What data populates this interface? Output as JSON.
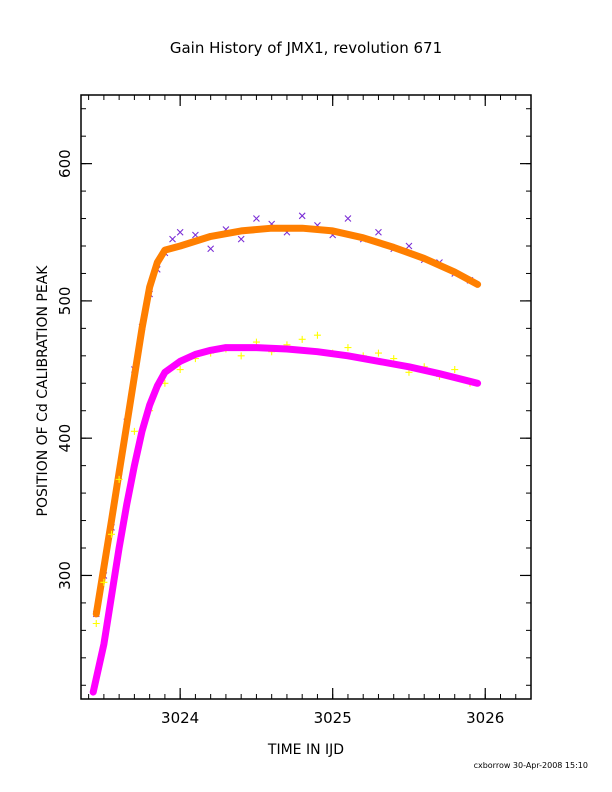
{
  "chart_data": {
    "type": "scatter",
    "title": "Gain History of JMX1, revolution 671",
    "xlabel": "TIME IN IJD",
    "ylabel": "POSITION OF Cd CALIBRATION PEAK",
    "xlim": [
      3023.35,
      3026.3
    ],
    "ylim": [
      210,
      650
    ],
    "x_ticks": [
      {
        "value": 3024,
        "label": "3024"
      },
      {
        "value": 3025,
        "label": "3025"
      },
      {
        "value": 3026,
        "label": "3026"
      }
    ],
    "y_ticks": [
      {
        "value": 300,
        "label": "300"
      },
      {
        "value": 400,
        "label": "400"
      },
      {
        "value": 500,
        "label": "500"
      },
      {
        "value": 600,
        "label": "600"
      }
    ],
    "grid": false,
    "legend": "none",
    "footer": "cxborrow 30-Apr-2008 15:10",
    "series": [
      {
        "role": "upper-data",
        "marker": "x",
        "color": "#7b2fd6",
        "points": [
          [
            3023.45,
            272
          ],
          [
            3023.5,
            300
          ],
          [
            3023.55,
            335
          ],
          [
            3023.6,
            372
          ],
          [
            3023.65,
            412
          ],
          [
            3023.7,
            450
          ],
          [
            3023.75,
            481
          ],
          [
            3023.8,
            505
          ],
          [
            3023.85,
            523
          ],
          [
            3023.9,
            535
          ],
          [
            3023.95,
            545
          ],
          [
            3024.0,
            550
          ],
          [
            3024.1,
            548
          ],
          [
            3024.2,
            538
          ],
          [
            3024.3,
            552
          ],
          [
            3024.4,
            545
          ],
          [
            3024.5,
            560
          ],
          [
            3024.6,
            556
          ],
          [
            3024.7,
            550
          ],
          [
            3024.8,
            562
          ],
          [
            3024.9,
            555
          ],
          [
            3025.0,
            548
          ],
          [
            3025.1,
            560
          ],
          [
            3025.2,
            545
          ],
          [
            3025.3,
            550
          ],
          [
            3025.4,
            538
          ],
          [
            3025.5,
            540
          ],
          [
            3025.6,
            530
          ],
          [
            3025.7,
            528
          ],
          [
            3025.8,
            520
          ],
          [
            3025.9,
            515
          ]
        ]
      },
      {
        "role": "upper-fit",
        "marker": "line",
        "color": "#ff7f00",
        "points": [
          [
            3023.45,
            272
          ],
          [
            3023.5,
            306
          ],
          [
            3023.55,
            340
          ],
          [
            3023.6,
            375
          ],
          [
            3023.65,
            410
          ],
          [
            3023.7,
            445
          ],
          [
            3023.75,
            480
          ],
          [
            3023.8,
            510
          ],
          [
            3023.85,
            528
          ],
          [
            3023.9,
            537
          ],
          [
            3024.0,
            540
          ],
          [
            3024.2,
            547
          ],
          [
            3024.4,
            551
          ],
          [
            3024.6,
            553
          ],
          [
            3024.8,
            553
          ],
          [
            3025.0,
            551
          ],
          [
            3025.2,
            546
          ],
          [
            3025.4,
            539
          ],
          [
            3025.6,
            531
          ],
          [
            3025.8,
            521
          ],
          [
            3025.95,
            512
          ]
        ]
      },
      {
        "role": "lower-data",
        "marker": "+",
        "color": "#ffff00",
        "points": [
          [
            3023.45,
            265
          ],
          [
            3023.5,
            295
          ],
          [
            3023.55,
            330
          ],
          [
            3023.6,
            370
          ],
          [
            3023.7,
            405
          ],
          [
            3023.8,
            420
          ],
          [
            3023.9,
            440
          ],
          [
            3024.0,
            450
          ],
          [
            3024.1,
            458
          ],
          [
            3024.2,
            462
          ],
          [
            3024.3,
            465
          ],
          [
            3024.4,
            460
          ],
          [
            3024.5,
            470
          ],
          [
            3024.6,
            463
          ],
          [
            3024.7,
            468
          ],
          [
            3024.8,
            472
          ],
          [
            3024.9,
            475
          ],
          [
            3025.0,
            462
          ],
          [
            3025.1,
            466
          ],
          [
            3025.2,
            460
          ],
          [
            3025.3,
            462
          ],
          [
            3025.4,
            458
          ],
          [
            3025.5,
            448
          ],
          [
            3025.6,
            452
          ],
          [
            3025.7,
            445
          ],
          [
            3025.8,
            450
          ],
          [
            3025.9,
            440
          ]
        ]
      },
      {
        "role": "lower-fit",
        "marker": "line",
        "color": "#ff00ff",
        "points": [
          [
            3023.43,
            215
          ],
          [
            3023.5,
            250
          ],
          [
            3023.55,
            285
          ],
          [
            3023.6,
            320
          ],
          [
            3023.65,
            352
          ],
          [
            3023.7,
            380
          ],
          [
            3023.75,
            405
          ],
          [
            3023.8,
            424
          ],
          [
            3023.85,
            438
          ],
          [
            3023.9,
            448
          ],
          [
            3024.0,
            456
          ],
          [
            3024.1,
            461
          ],
          [
            3024.2,
            464
          ],
          [
            3024.3,
            466
          ],
          [
            3024.5,
            466
          ],
          [
            3024.7,
            465
          ],
          [
            3024.9,
            463
          ],
          [
            3025.1,
            460
          ],
          [
            3025.3,
            456
          ],
          [
            3025.5,
            452
          ],
          [
            3025.7,
            447
          ],
          [
            3025.95,
            440
          ]
        ]
      }
    ]
  }
}
